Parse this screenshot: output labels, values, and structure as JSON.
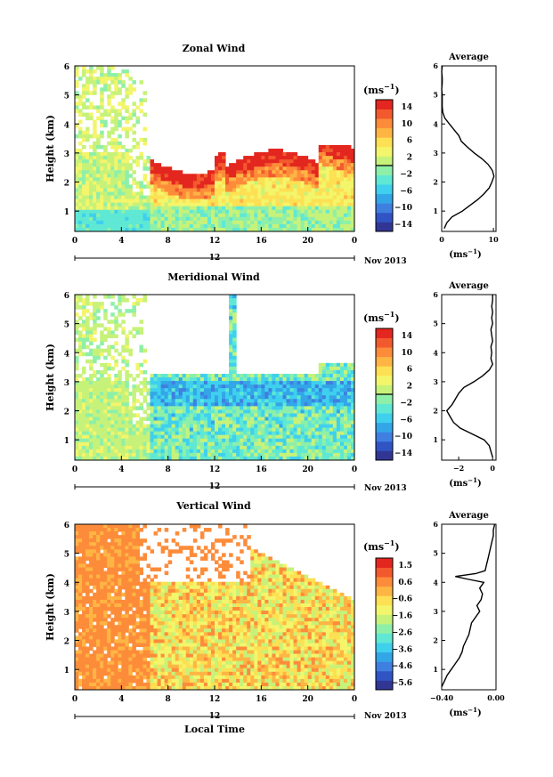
{
  "chart_data": [
    {
      "type": "heatmap",
      "title": "Zonal Wind",
      "ylabel": "Height (km)",
      "y_ticks": [
        "1",
        "2",
        "3",
        "4",
        "5",
        "6"
      ],
      "ylim": [
        0.3,
        6.0
      ],
      "x_ticks": [
        "0",
        "4",
        "8",
        "12",
        "16",
        "20",
        "0"
      ],
      "xlim": [
        0,
        24
      ],
      "date_label": "12",
      "date_suffix": "Nov 2013",
      "unit": "(ms",
      "unit_exp": "−1",
      "unit_close": ")",
      "colorbar_labels": [
        "14",
        "10",
        "6",
        "2",
        "−2",
        "−6",
        "−10",
        "−14"
      ],
      "colorbar_range": [
        -16,
        16
      ],
      "colorbar_line": 0,
      "profile": {
        "title": "Average",
        "xlabel": "(ms",
        "xlabel_exp": "−1",
        "xlabel_close": ")",
        "x_tick_labels": [
          "0",
          "10"
        ],
        "x_tick_values": [
          0,
          10
        ],
        "xlim": [
          0,
          10.5
        ],
        "heights": [
          0.4,
          0.6,
          0.8,
          1.0,
          1.2,
          1.4,
          1.6,
          1.8,
          2.0,
          2.2,
          2.4,
          2.6,
          2.8,
          3.0,
          3.2,
          3.4,
          3.6,
          3.8,
          4.0,
          4.2,
          4.4,
          4.6,
          4.8,
          5.0,
          5.2,
          5.4,
          5.6,
          5.8,
          6.0
        ],
        "values": [
          0.5,
          1.0,
          2.0,
          4.0,
          5.5,
          7.0,
          8.2,
          9.2,
          9.7,
          10.1,
          9.8,
          9.0,
          7.8,
          6.3,
          5.0,
          3.8,
          3.3,
          2.4,
          1.5,
          0.6,
          0.2,
          0.1,
          0.1,
          0.1,
          0.0,
          0.1,
          0.1,
          0.0,
          0.1
        ]
      }
    },
    {
      "type": "heatmap",
      "title": "Meridional Wind",
      "ylabel": "Height (km)",
      "y_ticks": [
        "1",
        "2",
        "3",
        "4",
        "5",
        "6"
      ],
      "ylim": [
        0.3,
        6.0
      ],
      "x_ticks": [
        "0",
        "4",
        "8",
        "12",
        "16",
        "20",
        "0"
      ],
      "xlim": [
        0,
        24
      ],
      "date_label": "12",
      "date_suffix": "Nov 2013",
      "unit": "(ms",
      "unit_exp": "−1",
      "unit_close": ")",
      "colorbar_labels": [
        "14",
        "10",
        "6",
        "2",
        "−2",
        "−6",
        "−10",
        "−14"
      ],
      "colorbar_range": [
        -16,
        16
      ],
      "colorbar_line": 0,
      "profile": {
        "title": "Average",
        "xlabel": "(ms",
        "xlabel_exp": "−1",
        "xlabel_close": ")",
        "x_tick_labels": [
          "−2",
          "0"
        ],
        "x_tick_values": [
          -2,
          0
        ],
        "xlim": [
          -3.0,
          0.2
        ],
        "heights": [
          0.4,
          0.6,
          0.8,
          1.0,
          1.2,
          1.4,
          1.6,
          1.8,
          2.0,
          2.2,
          2.4,
          2.6,
          2.8,
          3.0,
          3.2,
          3.4,
          3.6,
          3.8,
          4.0,
          4.2,
          4.4,
          4.6,
          4.8,
          5.0,
          5.2,
          5.4,
          5.6,
          5.8,
          6.0
        ],
        "values": [
          0.0,
          -0.1,
          -0.2,
          -0.5,
          -1.2,
          -1.9,
          -2.3,
          -2.5,
          -2.7,
          -2.4,
          -2.2,
          -2.0,
          -1.7,
          -1.1,
          -0.6,
          -0.2,
          0.0,
          -0.1,
          -0.05,
          -0.1,
          0.0,
          -0.05,
          -0.1,
          0.0,
          -0.05,
          0.0,
          -0.05,
          0.0,
          0.0
        ]
      }
    },
    {
      "type": "heatmap",
      "title": "Vertical Wind",
      "ylabel": "Height (km)",
      "y_ticks": [
        "1",
        "2",
        "3",
        "4",
        "5",
        "6"
      ],
      "ylim": [
        0.3,
        6.0
      ],
      "x_ticks": [
        "0",
        "4",
        "8",
        "12",
        "16",
        "20",
        "0"
      ],
      "xlim": [
        0,
        24
      ],
      "date_label": "12",
      "date_suffix": "Nov 2013",
      "xlabel": "Local Time",
      "unit": "(ms",
      "unit_exp": "−1",
      "unit_close": ")",
      "colorbar_labels": [
        "1.5",
        "0.6",
        "−0.6",
        "−1.6",
        "−2.6",
        "−3.6",
        "−4.6",
        "−5.6"
      ],
      "colorbar_range": [
        -6,
        2
      ],
      "profile": {
        "title": "Average",
        "xlabel": "(ms",
        "xlabel_exp": "−1",
        "xlabel_close": ")",
        "x_tick_labels": [
          "−0.40",
          "0.00"
        ],
        "x_tick_values": [
          -0.4,
          0.0
        ],
        "xlim": [
          -0.4,
          0.0
        ],
        "heights": [
          0.4,
          0.6,
          0.8,
          1.0,
          1.2,
          1.4,
          1.6,
          1.8,
          2.0,
          2.2,
          2.4,
          2.6,
          2.8,
          3.0,
          3.2,
          3.4,
          3.6,
          3.8,
          4.0,
          4.1,
          4.2,
          4.3,
          4.4,
          4.6,
          4.8,
          5.0,
          5.2,
          5.4,
          5.6,
          5.8,
          6.0
        ],
        "values": [
          -0.4,
          -0.38,
          -0.36,
          -0.33,
          -0.3,
          -0.27,
          -0.25,
          -0.24,
          -0.22,
          -0.2,
          -0.19,
          -0.18,
          -0.15,
          -0.12,
          -0.14,
          -0.11,
          -0.1,
          -0.12,
          -0.09,
          -0.2,
          -0.3,
          -0.15,
          -0.08,
          -0.07,
          -0.06,
          -0.05,
          -0.04,
          -0.03,
          -0.02,
          -0.02,
          -0.01
        ]
      }
    }
  ],
  "colormap": [
    "#313695",
    "#3154c4",
    "#3f7fe0",
    "#33a6e8",
    "#3fd0ee",
    "#5fe8d4",
    "#8ef0a8",
    "#c7f27a",
    "#f3f56b",
    "#fde053",
    "#feb544",
    "#fd8c3a",
    "#f25a2d",
    "#e3261f"
  ],
  "contour_color": "#000000"
}
